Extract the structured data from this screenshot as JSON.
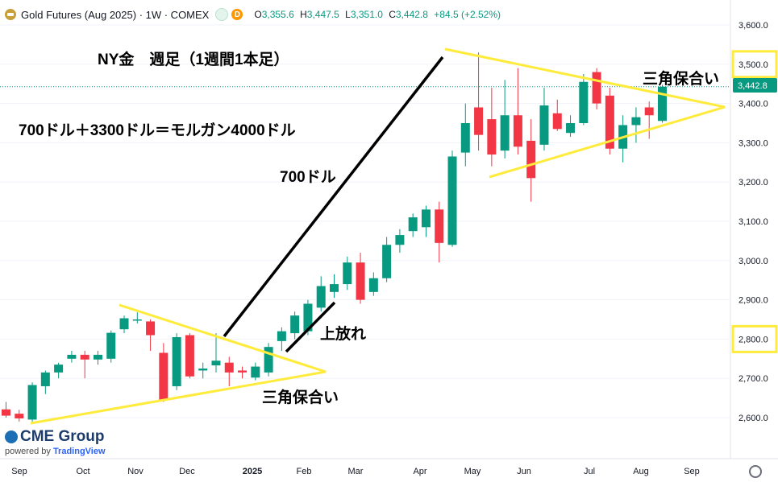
{
  "header": {
    "symbol_title": "Gold Futures (Aug 2025) · 1W · COMEX",
    "ohlc": [
      {
        "label": "O",
        "value": "3,355.6"
      },
      {
        "label": "H",
        "value": "3,447.5"
      },
      {
        "label": "L",
        "value": "3,351.0"
      },
      {
        "label": "C",
        "value": "3,442.8"
      },
      {
        "label": "",
        "value": "+84.5 (+2.52%)"
      }
    ],
    "badge_d": "D"
  },
  "branding": {
    "cme": "CME Group",
    "powered": "powered by",
    "tradingview": "TradingView"
  },
  "annotations": {
    "title": "NY金　週足（1週間1本足）",
    "equation": "700ドル＋3300ドル＝モルガン4000ドル",
    "rise_label": "700ドル",
    "breakout_label": "上放れ",
    "triangle_label_left": "三角保合い",
    "triangle_label_right": "三角保合い"
  },
  "colors": {
    "up": "#089981",
    "down": "#f23645",
    "highlight": "#ffeb3b",
    "price_tag": "#089981"
  },
  "chart_data": {
    "type": "candlestick",
    "ylim": [
      2540,
      3650
    ],
    "y_ticks": [
      2600,
      2700,
      2800,
      2900,
      3000,
      3100,
      3200,
      3300,
      3400,
      3500,
      3600
    ],
    "y_tick_labels": [
      "2,600.0",
      "2,700.0",
      "2,800.0",
      "2,900.0",
      "3,000.0",
      "3,100.0",
      "3,200.0",
      "3,300.0",
      "3,400.0",
      "3,500.0",
      "3,600.0"
    ],
    "highlighted_levels": [
      3500,
      2800
    ],
    "last_price": 3442.8,
    "last_price_label": "3,442.8",
    "x_labels": [
      "Sep",
      "Oct",
      "Nov",
      "Dec",
      "2025",
      "Feb",
      "Mar",
      "Apr",
      "May",
      "Jun",
      "Jul",
      "Aug",
      "Sep"
    ],
    "candles": [
      {
        "o": 2621,
        "h": 2640,
        "l": 2600,
        "c": 2605
      },
      {
        "o": 2610,
        "h": 2620,
        "l": 2590,
        "c": 2598
      },
      {
        "o": 2595,
        "h": 2690,
        "l": 2590,
        "c": 2683
      },
      {
        "o": 2680,
        "h": 2720,
        "l": 2660,
        "c": 2715
      },
      {
        "o": 2715,
        "h": 2740,
        "l": 2700,
        "c": 2735
      },
      {
        "o": 2750,
        "h": 2770,
        "l": 2740,
        "c": 2760
      },
      {
        "o": 2760,
        "h": 2770,
        "l": 2700,
        "c": 2748
      },
      {
        "o": 2748,
        "h": 2770,
        "l": 2735,
        "c": 2760
      },
      {
        "o": 2750,
        "h": 2822,
        "l": 2740,
        "c": 2816
      },
      {
        "o": 2825,
        "h": 2860,
        "l": 2815,
        "c": 2853
      },
      {
        "o": 2850,
        "h": 2868,
        "l": 2840,
        "c": 2850
      },
      {
        "o": 2845,
        "h": 2850,
        "l": 2770,
        "c": 2810
      },
      {
        "o": 2765,
        "h": 2790,
        "l": 2640,
        "c": 2645
      },
      {
        "o": 2680,
        "h": 2815,
        "l": 2670,
        "c": 2805
      },
      {
        "o": 2810,
        "h": 2815,
        "l": 2700,
        "c": 2705
      },
      {
        "o": 2720,
        "h": 2740,
        "l": 2700,
        "c": 2725
      },
      {
        "o": 2733,
        "h": 2815,
        "l": 2715,
        "c": 2745
      },
      {
        "o": 2740,
        "h": 2755,
        "l": 2680,
        "c": 2715
      },
      {
        "o": 2720,
        "h": 2730,
        "l": 2700,
        "c": 2715
      },
      {
        "o": 2702,
        "h": 2740,
        "l": 2695,
        "c": 2730
      },
      {
        "o": 2715,
        "h": 2790,
        "l": 2705,
        "c": 2780
      },
      {
        "o": 2795,
        "h": 2830,
        "l": 2770,
        "c": 2820
      },
      {
        "o": 2815,
        "h": 2870,
        "l": 2800,
        "c": 2860
      },
      {
        "o": 2820,
        "h": 2900,
        "l": 2810,
        "c": 2890
      },
      {
        "o": 2880,
        "h": 2960,
        "l": 2870,
        "c": 2935
      },
      {
        "o": 2920,
        "h": 2965,
        "l": 2905,
        "c": 2940
      },
      {
        "o": 2940,
        "h": 3010,
        "l": 2925,
        "c": 2995
      },
      {
        "o": 2995,
        "h": 3020,
        "l": 2890,
        "c": 2900
      },
      {
        "o": 2920,
        "h": 2970,
        "l": 2910,
        "c": 2955
      },
      {
        "o": 2955,
        "h": 3060,
        "l": 2945,
        "c": 3040
      },
      {
        "o": 3040,
        "h": 3080,
        "l": 3020,
        "c": 3065
      },
      {
        "o": 3075,
        "h": 3120,
        "l": 3060,
        "c": 3110
      },
      {
        "o": 3085,
        "h": 3140,
        "l": 3060,
        "c": 3130
      },
      {
        "o": 3130,
        "h": 3150,
        "l": 2995,
        "c": 3045
      },
      {
        "o": 3040,
        "h": 3280,
        "l": 3035,
        "c": 3265
      },
      {
        "o": 3275,
        "h": 3400,
        "l": 3240,
        "c": 3350
      },
      {
        "o": 3390,
        "h": 3530,
        "l": 3280,
        "c": 3320
      },
      {
        "o": 3360,
        "h": 3440,
        "l": 3240,
        "c": 3270
      },
      {
        "o": 3280,
        "h": 3460,
        "l": 3260,
        "c": 3370
      },
      {
        "o": 3370,
        "h": 3490,
        "l": 3270,
        "c": 3290
      },
      {
        "o": 3305,
        "h": 3360,
        "l": 3150,
        "c": 3210
      },
      {
        "o": 3295,
        "h": 3440,
        "l": 3280,
        "c": 3395
      },
      {
        "o": 3375,
        "h": 3410,
        "l": 3330,
        "c": 3335
      },
      {
        "o": 3325,
        "h": 3370,
        "l": 3315,
        "c": 3350
      },
      {
        "o": 3350,
        "h": 3475,
        "l": 3345,
        "c": 3455
      },
      {
        "o": 3480,
        "h": 3490,
        "l": 3385,
        "c": 3400
      },
      {
        "o": 3420,
        "h": 3440,
        "l": 3270,
        "c": 3285
      },
      {
        "o": 3285,
        "h": 3370,
        "l": 3250,
        "c": 3345
      },
      {
        "o": 3345,
        "h": 3390,
        "l": 3300,
        "c": 3365
      },
      {
        "o": 3390,
        "h": 3405,
        "l": 3310,
        "c": 3370
      },
      {
        "o": 3355.6,
        "h": 3447.5,
        "l": 3351.0,
        "c": 3442.8
      }
    ]
  }
}
